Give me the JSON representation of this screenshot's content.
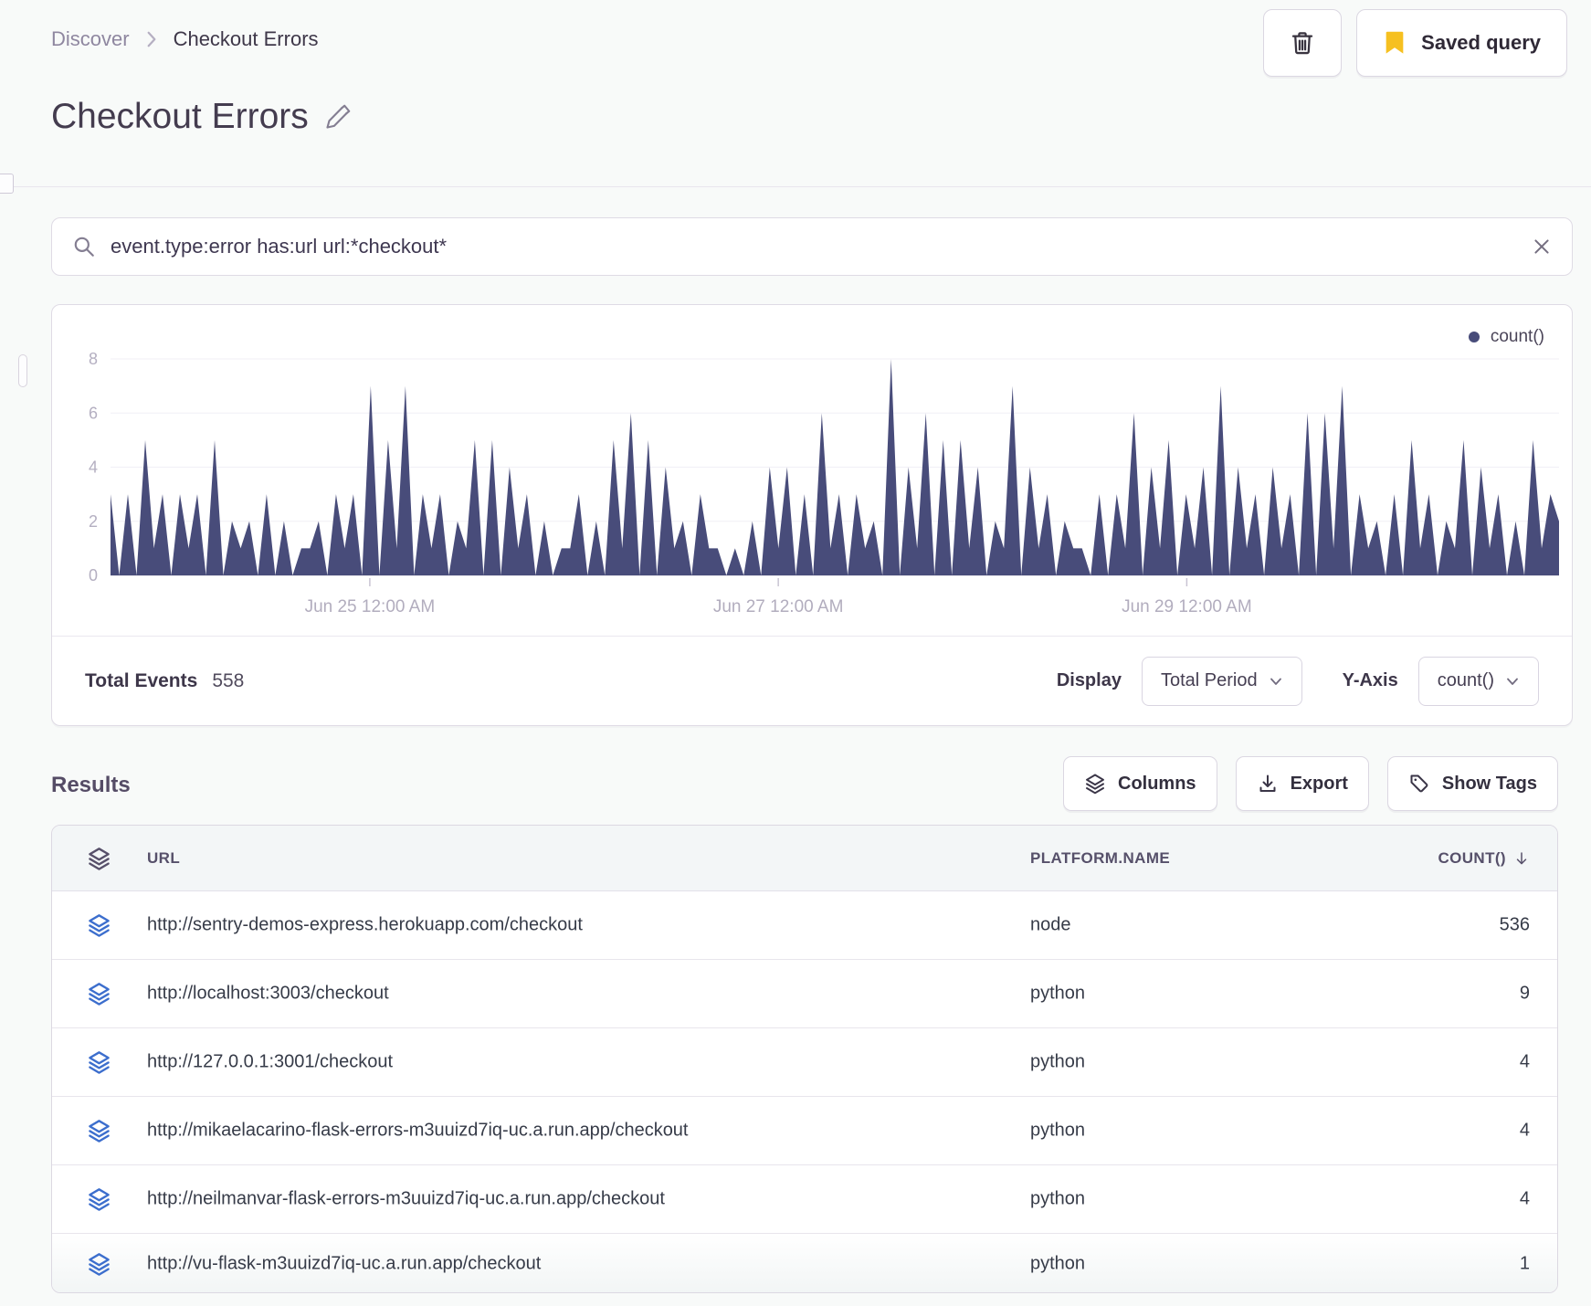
{
  "breadcrumb": {
    "parent": "Discover",
    "current": "Checkout Errors"
  },
  "header": {
    "title": "Checkout Errors",
    "saved_query_label": "Saved query"
  },
  "search": {
    "query": "event.type:error has:url url:*checkout*"
  },
  "chart_data": {
    "type": "area",
    "title": "",
    "legend": [
      "count()"
    ],
    "series_color": "#484c7a",
    "ylabel": "count()",
    "ylim": [
      0,
      8
    ],
    "y_ticks": [
      0,
      2,
      4,
      6,
      8
    ],
    "x_ticks": [
      "Jun 25 12:00 AM",
      "Jun 27 12:00 AM",
      "Jun 29 12:00 AM"
    ],
    "grid": true,
    "legend_position": "top-right",
    "values": [
      3,
      0,
      3,
      0,
      5,
      1,
      3,
      0,
      3,
      1,
      3,
      0,
      5,
      0,
      2,
      1,
      2,
      0,
      3,
      0,
      2,
      0,
      1,
      1,
      2,
      0,
      3,
      1,
      3,
      0,
      7,
      0,
      5,
      1,
      7,
      0,
      3,
      1,
      3,
      0,
      2,
      1,
      5,
      0,
      5,
      0,
      4,
      1,
      3,
      0,
      2,
      0,
      1,
      1,
      3,
      0,
      2,
      0,
      5,
      1,
      6,
      0,
      5,
      0,
      4,
      1,
      2,
      0,
      3,
      1,
      1,
      0,
      1,
      0,
      2,
      0,
      4,
      1,
      4,
      0,
      3,
      0,
      6,
      1,
      3,
      0,
      3,
      1,
      2,
      0,
      8,
      0,
      4,
      1,
      6,
      0,
      5,
      0,
      5,
      1,
      4,
      0,
      2,
      1,
      7,
      0,
      4,
      1,
      3,
      0,
      2,
      1,
      1,
      0,
      3,
      0,
      3,
      1,
      6,
      0,
      4,
      1,
      5,
      0,
      3,
      1,
      4,
      0,
      7,
      0,
      4,
      1,
      3,
      0,
      4,
      1,
      3,
      0,
      6,
      0,
      6,
      1,
      7,
      0,
      3,
      1,
      2,
      0,
      3,
      0,
      5,
      1,
      3,
      0,
      2,
      1,
      5,
      0,
      4,
      1,
      3,
      0,
      2,
      0,
      5,
      1,
      3,
      2
    ]
  },
  "chart_footer": {
    "total_events_label": "Total Events",
    "total_events_value": "558",
    "display_label": "Display",
    "display_value": "Total Period",
    "yaxis_label": "Y-Axis",
    "yaxis_value": "count()"
  },
  "results": {
    "title": "Results",
    "buttons": {
      "columns": "Columns",
      "export": "Export",
      "show_tags": "Show Tags"
    }
  },
  "table": {
    "columns": [
      "URL",
      "PLATFORM.NAME",
      "COUNT()"
    ],
    "sort_column": "COUNT()",
    "sort_direction": "desc",
    "rows": [
      {
        "url": "http://sentry-demos-express.herokuapp.com/checkout",
        "platform": "node",
        "count": "536"
      },
      {
        "url": "http://localhost:3003/checkout",
        "platform": "python",
        "count": "9"
      },
      {
        "url": "http://127.0.0.1:3001/checkout",
        "platform": "python",
        "count": "4"
      },
      {
        "url": "http://mikaelacarino-flask-errors-m3uuizd7iq-uc.a.run.app/checkout",
        "platform": "python",
        "count": "4"
      },
      {
        "url": "http://neilmanvar-flask-errors-m3uuizd7iq-uc.a.run.app/checkout",
        "platform": "python",
        "count": "4"
      },
      {
        "url": "http://vu-flask-m3uuizd7iq-uc.a.run.app/checkout",
        "platform": "python",
        "count": "1"
      }
    ]
  },
  "icons": {
    "trash-icon": "🗑",
    "bookmark-icon": "🔖",
    "edit-pencil-icon": "✎",
    "search-icon": "🔍",
    "clear-icon": "✕",
    "layers-icon": "≋",
    "download-icon": "⭳",
    "tag-icon": "🏷",
    "chevron-down-icon": "⌄",
    "sort-desc-icon": "↓",
    "breadcrumb-chevron-icon": "›"
  },
  "colors": {
    "accent_yellow": "#f6c020",
    "chart_series": "#484c7a",
    "row_icon_blue": "#3c6ecd",
    "page_background": "#f8faf9"
  }
}
